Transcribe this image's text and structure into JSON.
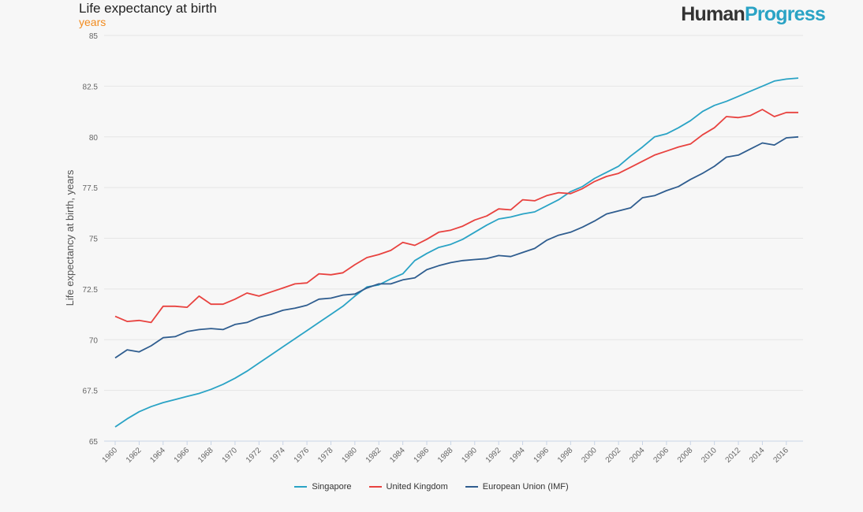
{
  "header": {
    "title": "Life expectancy at birth",
    "subtitle": "years",
    "logo_part1": "Human",
    "logo_part2": "Progress"
  },
  "colors": {
    "singapore": "#2aa3c5",
    "united_kingdom": "#e8423f",
    "european_union": "#2f5d8f",
    "grid": "#e6e6e6",
    "axis_text": "#666666",
    "logo_accent": "#2aa3c5",
    "subtitle": "#f28b1e"
  },
  "chart_data": {
    "type": "line",
    "title": "Life expectancy at birth",
    "subtitle": "years",
    "xlabel": "",
    "ylabel": "Life expectancy at birth, years",
    "ylim": [
      65,
      85
    ],
    "xlim": [
      1960,
      2017
    ],
    "yticks": [
      "65",
      "67.5",
      "70",
      "72.5",
      "75",
      "77.5",
      "80",
      "82.5",
      "85"
    ],
    "xticks": [
      "1960",
      "1962",
      "1964",
      "1966",
      "1968",
      "1970",
      "1972",
      "1974",
      "1976",
      "1978",
      "1980",
      "1982",
      "1984",
      "1986",
      "1988",
      "1990",
      "1992",
      "1994",
      "1996",
      "1998",
      "2000",
      "2002",
      "2004",
      "2006",
      "2008",
      "2010",
      "2012",
      "2014",
      "2016"
    ],
    "grid": true,
    "legend_position": "bottom-center",
    "x": [
      1960,
      1961,
      1962,
      1963,
      1964,
      1965,
      1966,
      1967,
      1968,
      1969,
      1970,
      1971,
      1972,
      1973,
      1974,
      1975,
      1976,
      1977,
      1978,
      1979,
      1980,
      1981,
      1982,
      1983,
      1984,
      1985,
      1986,
      1987,
      1988,
      1989,
      1990,
      1991,
      1992,
      1993,
      1994,
      1995,
      1996,
      1997,
      1998,
      1999,
      2000,
      2001,
      2002,
      2003,
      2004,
      2005,
      2006,
      2007,
      2008,
      2009,
      2010,
      2011,
      2012,
      2013,
      2014,
      2015,
      2016,
      2017
    ],
    "series": [
      {
        "name": "Singapore",
        "color": "#2aa3c5",
        "values": [
          65.7,
          66.1,
          66.45,
          66.7,
          66.9,
          67.05,
          67.2,
          67.35,
          67.55,
          67.8,
          68.1,
          68.45,
          68.85,
          69.25,
          69.65,
          70.05,
          70.45,
          70.85,
          71.25,
          71.65,
          72.15,
          72.6,
          72.7,
          73.0,
          73.25,
          73.9,
          74.25,
          74.55,
          74.7,
          74.95,
          75.3,
          75.65,
          75.95,
          76.05,
          76.2,
          76.3,
          76.6,
          76.9,
          77.3,
          77.55,
          77.95,
          78.25,
          78.55,
          79.05,
          79.5,
          80.0,
          80.15,
          80.45,
          80.8,
          81.25,
          81.55,
          81.75,
          82.0,
          82.25,
          82.5,
          82.75,
          82.85,
          82.9
        ]
      },
      {
        "name": "United Kingdom",
        "color": "#e8423f",
        "values": [
          71.15,
          70.9,
          70.95,
          70.85,
          71.65,
          71.65,
          71.6,
          72.15,
          71.75,
          71.75,
          72.0,
          72.3,
          72.15,
          72.35,
          72.55,
          72.75,
          72.8,
          73.25,
          73.2,
          73.3,
          73.7,
          74.05,
          74.2,
          74.4,
          74.8,
          74.65,
          74.95,
          75.3,
          75.4,
          75.6,
          75.9,
          76.1,
          76.45,
          76.4,
          76.9,
          76.85,
          77.1,
          77.25,
          77.2,
          77.45,
          77.8,
          78.05,
          78.2,
          78.5,
          78.8,
          79.1,
          79.3,
          79.5,
          79.65,
          80.1,
          80.45,
          81.0,
          80.95,
          81.05,
          81.35,
          81.0,
          81.2,
          81.2
        ]
      },
      {
        "name": "European Union (IMF)",
        "color": "#2f5d8f",
        "values": [
          69.1,
          69.5,
          69.4,
          69.7,
          70.1,
          70.15,
          70.4,
          70.5,
          70.55,
          70.5,
          70.75,
          70.85,
          71.1,
          71.25,
          71.45,
          71.55,
          71.7,
          72.0,
          72.05,
          72.2,
          72.25,
          72.55,
          72.75,
          72.75,
          72.95,
          73.05,
          73.45,
          73.65,
          73.8,
          73.9,
          73.95,
          74.0,
          74.15,
          74.1,
          74.3,
          74.5,
          74.9,
          75.15,
          75.3,
          75.55,
          75.85,
          76.2,
          76.35,
          76.5,
          77.0,
          77.1,
          77.35,
          77.55,
          77.9,
          78.2,
          78.55,
          79.0,
          79.1,
          79.4,
          79.7,
          79.6,
          79.95,
          80.0
        ]
      }
    ]
  }
}
